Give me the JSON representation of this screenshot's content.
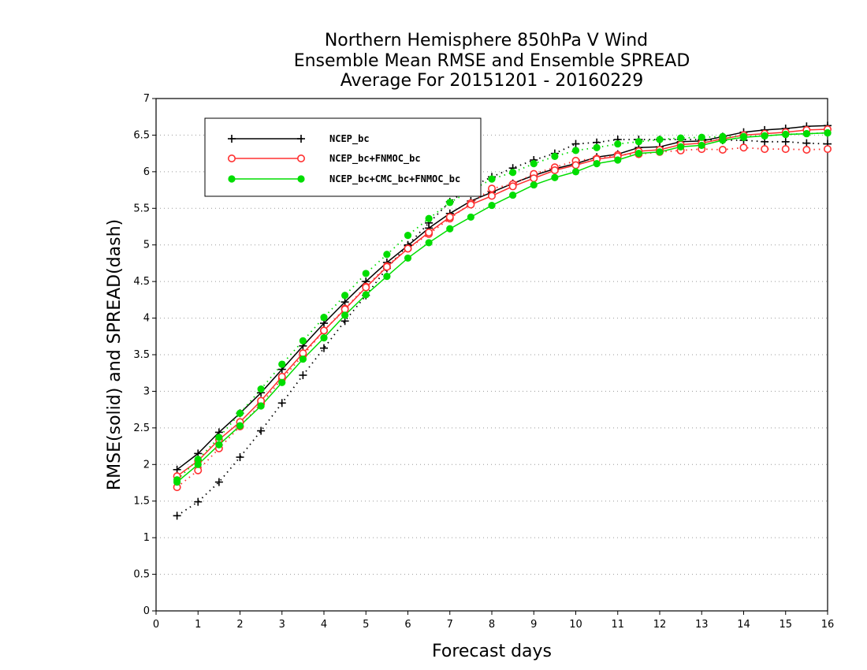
{
  "chart_data": {
    "type": "line",
    "title": [
      "Northern Hemisphere 850hPa V Wind",
      "Ensemble Mean RMSE and Ensemble SPREAD",
      "Average For 20151201 - 20160229"
    ],
    "xlabel": "Forecast days",
    "ylabel": "RMSE(solid) and SPREAD(dash)",
    "xlim": [
      0,
      16
    ],
    "ylim": [
      0,
      7
    ],
    "x_ticks": [
      "0",
      "1",
      "2",
      "3",
      "4",
      "5",
      "6",
      "7",
      "8",
      "9",
      "10",
      "11",
      "12",
      "13",
      "14",
      "15",
      "16"
    ],
    "y_ticks": [
      "0",
      "0.5",
      "1",
      "1.5",
      "2",
      "2.5",
      "3",
      "3.5",
      "4",
      "4.5",
      "5",
      "5.5",
      "6",
      "6.5",
      "7"
    ],
    "grid": "horizontal dotted",
    "legend_position": "top-left",
    "x": [
      0.5,
      1,
      1.5,
      2,
      2.5,
      3,
      3.5,
      4,
      4.5,
      5,
      5.5,
      6,
      6.5,
      7,
      7.5,
      8,
      8.5,
      9,
      9.5,
      10,
      10.5,
      11,
      11.5,
      12,
      12.5,
      13,
      13.5,
      14,
      14.5,
      15,
      15.5,
      16
    ],
    "series": [
      {
        "name": "NCEP_bc",
        "color": "#000000",
        "marker": "plus",
        "rmse": [
          1.93,
          2.15,
          2.44,
          2.7,
          2.98,
          3.3,
          3.62,
          3.93,
          4.22,
          4.5,
          4.76,
          4.99,
          5.23,
          5.43,
          5.6,
          5.72,
          5.84,
          5.95,
          6.04,
          6.11,
          6.2,
          6.24,
          6.33,
          6.34,
          6.41,
          6.42,
          6.48,
          6.54,
          6.57,
          6.59,
          6.62,
          6.63
        ],
        "spread": [
          1.3,
          1.49,
          1.76,
          2.1,
          2.46,
          2.84,
          3.22,
          3.59,
          3.96,
          4.31,
          4.68,
          5.0,
          5.3,
          5.59,
          5.79,
          5.93,
          6.05,
          6.16,
          6.25,
          6.38,
          6.4,
          6.44,
          6.44,
          6.44,
          6.44,
          6.44,
          6.43,
          6.43,
          6.41,
          6.41,
          6.39,
          6.38
        ]
      },
      {
        "name": "NCEP_bc+FNMOC_bc",
        "color": "#ff3030",
        "marker": "open-circle",
        "rmse": [
          1.84,
          2.05,
          2.34,
          2.58,
          2.87,
          3.2,
          3.52,
          3.83,
          4.12,
          4.42,
          4.7,
          4.95,
          5.17,
          5.38,
          5.55,
          5.67,
          5.8,
          5.91,
          6.02,
          6.09,
          6.17,
          6.21,
          6.28,
          6.3,
          6.37,
          6.39,
          6.45,
          6.5,
          6.52,
          6.54,
          6.57,
          6.58
        ],
        "spread": [
          1.69,
          1.92,
          2.22,
          2.52,
          2.83,
          3.17,
          3.49,
          3.83,
          4.13,
          4.43,
          4.71,
          4.95,
          5.15,
          5.36,
          5.57,
          5.77,
          5.83,
          5.97,
          6.06,
          6.15,
          6.18,
          6.23,
          6.24,
          6.27,
          6.29,
          6.31,
          6.3,
          6.33,
          6.31,
          6.31,
          6.3,
          6.31
        ]
      },
      {
        "name": "NCEP_bc+CMC_bc+FNMOC_bc",
        "color": "#00dd00",
        "marker": "filled-circle",
        "rmse": [
          1.76,
          2.0,
          2.27,
          2.53,
          2.8,
          3.12,
          3.44,
          3.73,
          4.04,
          4.32,
          4.57,
          4.82,
          5.03,
          5.22,
          5.38,
          5.54,
          5.68,
          5.82,
          5.92,
          6.0,
          6.11,
          6.16,
          6.25,
          6.27,
          6.34,
          6.36,
          6.43,
          6.47,
          6.49,
          6.51,
          6.52,
          6.53
        ],
        "spread": [
          1.79,
          2.07,
          2.37,
          2.7,
          3.03,
          3.37,
          3.69,
          4.01,
          4.31,
          4.61,
          4.87,
          5.13,
          5.36,
          5.58,
          5.74,
          5.9,
          5.99,
          6.11,
          6.21,
          6.29,
          6.33,
          6.38,
          6.41,
          6.44,
          6.46,
          6.47,
          6.48,
          6.48,
          6.49,
          6.51,
          6.52,
          6.53
        ]
      }
    ]
  }
}
